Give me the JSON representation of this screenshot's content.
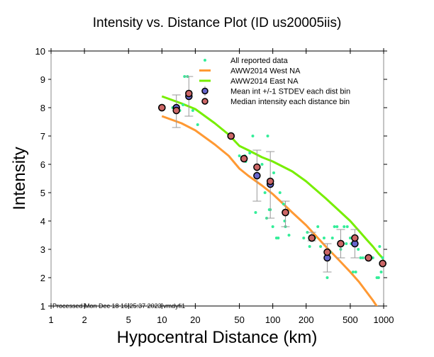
{
  "chart_data": {
    "type": "scatter",
    "title": "Intensity vs. Distance Plot (ID us20005iis)",
    "xlabel": "Hypocentral Distance (km)",
    "ylabel": "Intensity",
    "xscale": "log",
    "xlim": [
      1,
      1000
    ],
    "ylim": [
      1,
      10
    ],
    "xticks": [
      1,
      2,
      5,
      10,
      20,
      50,
      100,
      200,
      500,
      1000
    ],
    "xtick_labels": [
      "1",
      "2",
      "5",
      "10",
      "20",
      "50",
      "100",
      "200",
      "500",
      "1000"
    ],
    "yticks": [
      1,
      2,
      3,
      4,
      5,
      6,
      7,
      8,
      9,
      10
    ],
    "ytick_labels": [
      "1",
      "2",
      "3",
      "4",
      "5",
      "6",
      "7",
      "8",
      "9",
      "10"
    ],
    "grid": false,
    "legend_position": "top-right",
    "footer": "Processed Mon Dec 18 16:25:37 2023 vmdyfi1",
    "colors": {
      "reported": "#33ee99",
      "west": "#ff9933",
      "east": "#77ee00",
      "mean": "#6666cc",
      "median": "#cc6666",
      "errorbar": "#999999"
    },
    "legend": [
      {
        "label": "All reported data",
        "type": "dot"
      },
      {
        "label": "AWW2014 West NA",
        "type": "line-west"
      },
      {
        "label": "AWW2014 East NA",
        "type": "line-east"
      },
      {
        "label": "Mean int +/-1 STDEV each dist bin",
        "type": "mean"
      },
      {
        "label": "Median intensity each distance bin",
        "type": "median"
      }
    ],
    "reported_points": [
      [
        12.5,
        8.0
      ],
      [
        13,
        7.9
      ],
      [
        14.5,
        7.9
      ],
      [
        16,
        9.1
      ],
      [
        17,
        9.1
      ],
      [
        15.5,
        8.1
      ],
      [
        19,
        7.9
      ],
      [
        21,
        7.4
      ],
      [
        40,
        7.0
      ],
      [
        50,
        6.3
      ],
      [
        56,
        6.3
      ],
      [
        57,
        6.1
      ],
      [
        62,
        6.4
      ],
      [
        66,
        7.0
      ],
      [
        70,
        4.3
      ],
      [
        80,
        6.0
      ],
      [
        85,
        5.0
      ],
      [
        88,
        4.1
      ],
      [
        90,
        7.0
      ],
      [
        93,
        4.4
      ],
      [
        95,
        4.4
      ],
      [
        100,
        3.8
      ],
      [
        102,
        5.7
      ],
      [
        108,
        3.4
      ],
      [
        112,
        3.4
      ],
      [
        116,
        5.0
      ],
      [
        125,
        4.6
      ],
      [
        128,
        4.0
      ],
      [
        130,
        3.8
      ],
      [
        135,
        4.3
      ],
      [
        140,
        3.5
      ],
      [
        190,
        3.4
      ],
      [
        205,
        3.6
      ],
      [
        215,
        3.1
      ],
      [
        240,
        3.4
      ],
      [
        255,
        3.8
      ],
      [
        270,
        3.1
      ],
      [
        290,
        3.4
      ],
      [
        300,
        2.9
      ],
      [
        310,
        2.0
      ],
      [
        320,
        2.9
      ],
      [
        330,
        2.9
      ],
      [
        345,
        3.4
      ],
      [
        360,
        3.8
      ],
      [
        380,
        3.8
      ],
      [
        395,
        3.2
      ],
      [
        410,
        3.0
      ],
      [
        440,
        3.8
      ],
      [
        470,
        3.8
      ],
      [
        460,
        3.2
      ],
      [
        500,
        3.4
      ],
      [
        510,
        3.2
      ],
      [
        530,
        2.2
      ],
      [
        560,
        2.2
      ],
      [
        590,
        3.0
      ],
      [
        620,
        2.7
      ],
      [
        650,
        2.7
      ],
      [
        700,
        2.7
      ],
      [
        800,
        2.7
      ],
      [
        870,
        2.0
      ],
      [
        900,
        2.0
      ],
      [
        920,
        3.1
      ],
      [
        950,
        2.2
      ],
      [
        980,
        2.7
      ]
    ],
    "bins": [
      {
        "distance": 10,
        "mean": 8.0,
        "median": 8.0,
        "low": 8.0,
        "high": 8.0
      },
      {
        "distance": 13.5,
        "mean": 8.0,
        "median": 7.9,
        "low": 7.3,
        "high": 8.45
      },
      {
        "distance": 17.5,
        "mean": 8.4,
        "median": 8.5,
        "low": 7.7,
        "high": 9.1
      },
      {
        "distance": 42,
        "mean": 7.0,
        "median": 7.0,
        "low": 7.0,
        "high": 7.0
      },
      {
        "distance": 55,
        "mean": 6.2,
        "median": 6.2,
        "low": 6.2,
        "high": 6.2
      },
      {
        "distance": 72,
        "mean": 5.6,
        "median": 5.9,
        "low": 4.7,
        "high": 6.5
      },
      {
        "distance": 95,
        "mean": 5.3,
        "median": 5.4,
        "low": 4.1,
        "high": 6.45
      },
      {
        "distance": 130,
        "mean": 4.3,
        "median": 4.3,
        "low": 3.8,
        "high": 4.7
      },
      {
        "distance": 225,
        "mean": 3.4,
        "median": 3.4,
        "low": 3.3,
        "high": 3.6
      },
      {
        "distance": 310,
        "mean": 2.7,
        "median": 2.9,
        "low": 2.2,
        "high": 3.2
      },
      {
        "distance": 410,
        "mean": 3.2,
        "median": 3.2,
        "low": 2.7,
        "high": 3.7
      },
      {
        "distance": 550,
        "mean": 3.2,
        "median": 3.4,
        "low": 2.7,
        "high": 3.7
      },
      {
        "distance": 730,
        "mean": 2.7,
        "median": 2.7,
        "low": 2.7,
        "high": 2.7
      },
      {
        "distance": 980,
        "mean": 2.5,
        "median": 2.5,
        "low": 2.5,
        "high": 2.5
      }
    ],
    "series": [
      {
        "name": "AWW2014 West NA",
        "x": [
          10,
          15,
          20,
          30,
          40,
          50,
          60,
          80,
          100,
          150,
          200,
          300,
          400,
          500,
          600,
          700,
          800,
          900
        ],
        "y": [
          7.7,
          7.45,
          7.2,
          6.7,
          6.3,
          5.85,
          5.6,
          5.25,
          4.95,
          4.3,
          3.85,
          3.1,
          2.6,
          2.2,
          1.85,
          1.5,
          1.2,
          0.9
        ]
      },
      {
        "name": "AWW2014 East NA",
        "x": [
          10,
          15,
          20,
          30,
          40,
          50,
          60,
          80,
          100,
          150,
          200,
          300,
          400,
          500,
          600,
          700,
          800,
          900,
          1000
        ],
        "y": [
          8.4,
          8.15,
          7.95,
          7.45,
          7.05,
          6.65,
          6.5,
          6.25,
          6.1,
          5.75,
          5.4,
          4.8,
          4.35,
          4.0,
          3.65,
          3.35,
          3.1,
          2.85,
          2.65
        ]
      }
    ]
  }
}
